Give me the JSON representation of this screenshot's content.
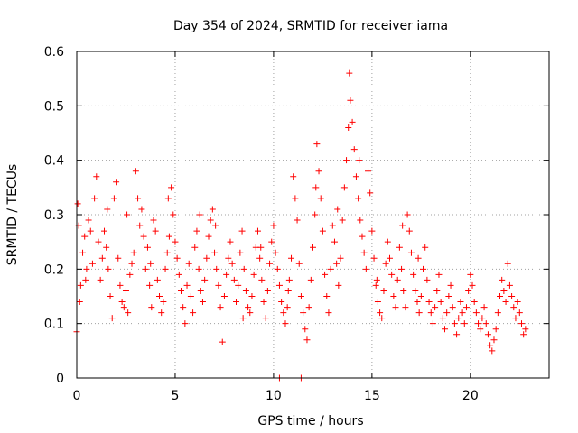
{
  "chart_data": {
    "type": "scatter",
    "title": "Day 354 of 2024, SRMTID for receiver iama",
    "xlabel": "GPS time / hours",
    "ylabel": "SRMTID / TECUs",
    "xlim": [
      0,
      24
    ],
    "ylim": [
      0,
      0.6
    ],
    "x_ticks": [
      0,
      5,
      10,
      15,
      20
    ],
    "y_ticks": [
      0,
      0.1,
      0.2,
      0.3,
      0.4,
      0.5,
      0.6
    ],
    "x_tick_labels": [
      "0",
      "5",
      "10",
      "15",
      "20"
    ],
    "y_tick_labels": [
      "0",
      "0.1",
      "0.2",
      "0.3",
      "0.4",
      "0.5",
      "0.6"
    ],
    "grid": true,
    "marker": "plus",
    "series": [
      {
        "name": "SRMTID",
        "color": "#ff0000",
        "points": [
          [
            0.0,
            0.085
          ],
          [
            0.05,
            0.32
          ],
          [
            0.1,
            0.28
          ],
          [
            0.2,
            0.17
          ],
          [
            0.3,
            0.23
          ],
          [
            0.4,
            0.26
          ],
          [
            0.5,
            0.2
          ],
          [
            0.6,
            0.29
          ],
          [
            0.7,
            0.27
          ],
          [
            0.8,
            0.21
          ],
          [
            0.9,
            0.33
          ],
          [
            1.0,
            0.37
          ],
          [
            1.1,
            0.25
          ],
          [
            1.2,
            0.18
          ],
          [
            1.3,
            0.22
          ],
          [
            1.4,
            0.27
          ],
          [
            1.5,
            0.24
          ],
          [
            1.6,
            0.2
          ],
          [
            1.7,
            0.15
          ],
          [
            1.8,
            0.11
          ],
          [
            1.9,
            0.33
          ],
          [
            2.0,
            0.36
          ],
          [
            2.1,
            0.22
          ],
          [
            2.2,
            0.17
          ],
          [
            2.3,
            0.14
          ],
          [
            2.4,
            0.13
          ],
          [
            2.5,
            0.16
          ],
          [
            2.6,
            0.12
          ],
          [
            2.7,
            0.19
          ],
          [
            2.8,
            0.21
          ],
          [
            2.9,
            0.23
          ],
          [
            3.0,
            0.38
          ],
          [
            3.1,
            0.33
          ],
          [
            3.2,
            0.28
          ],
          [
            3.3,
            0.31
          ],
          [
            3.4,
            0.26
          ],
          [
            3.5,
            0.2
          ],
          [
            3.6,
            0.24
          ],
          [
            3.7,
            0.17
          ],
          [
            3.8,
            0.13
          ],
          [
            3.9,
            0.29
          ],
          [
            4.0,
            0.27
          ],
          [
            4.1,
            0.18
          ],
          [
            4.2,
            0.15
          ],
          [
            4.3,
            0.12
          ],
          [
            4.4,
            0.14
          ],
          [
            4.5,
            0.2
          ],
          [
            4.6,
            0.23
          ],
          [
            4.7,
            0.26
          ],
          [
            4.8,
            0.35
          ],
          [
            4.9,
            0.3
          ],
          [
            5.0,
            0.25
          ],
          [
            5.1,
            0.22
          ],
          [
            5.2,
            0.19
          ],
          [
            5.3,
            0.16
          ],
          [
            5.4,
            0.13
          ],
          [
            5.5,
            0.1
          ],
          [
            5.6,
            0.17
          ],
          [
            5.7,
            0.21
          ],
          [
            5.8,
            0.15
          ],
          [
            5.9,
            0.12
          ],
          [
            6.0,
            0.24
          ],
          [
            6.1,
            0.27
          ],
          [
            6.2,
            0.2
          ],
          [
            6.3,
            0.16
          ],
          [
            6.4,
            0.14
          ],
          [
            6.5,
            0.18
          ],
          [
            6.6,
            0.22
          ],
          [
            6.7,
            0.26
          ],
          [
            6.8,
            0.29
          ],
          [
            6.9,
            0.31
          ],
          [
            7.0,
            0.23
          ],
          [
            7.1,
            0.2
          ],
          [
            7.2,
            0.17
          ],
          [
            7.3,
            0.13
          ],
          [
            7.4,
            0.066
          ],
          [
            7.5,
            0.15
          ],
          [
            7.6,
            0.19
          ],
          [
            7.7,
            0.22
          ],
          [
            7.8,
            0.25
          ],
          [
            7.9,
            0.21
          ],
          [
            8.0,
            0.18
          ],
          [
            8.1,
            0.14
          ],
          [
            8.2,
            0.17
          ],
          [
            8.3,
            0.23
          ],
          [
            8.4,
            0.27
          ],
          [
            8.5,
            0.2
          ],
          [
            8.6,
            0.16
          ],
          [
            8.7,
            0.13
          ],
          [
            8.8,
            0.12
          ],
          [
            8.9,
            0.15
          ],
          [
            9.0,
            0.19
          ],
          [
            9.1,
            0.24
          ],
          [
            9.2,
            0.27
          ],
          [
            9.3,
            0.22
          ],
          [
            9.4,
            0.18
          ],
          [
            9.5,
            0.14
          ],
          [
            9.6,
            0.11
          ],
          [
            9.7,
            0.16
          ],
          [
            9.8,
            0.21
          ],
          [
            9.9,
            0.25
          ],
          [
            10.0,
            0.28
          ],
          [
            10.1,
            0.23
          ],
          [
            10.2,
            0.2
          ],
          [
            10.3,
            0.17
          ],
          [
            10.4,
            0.14
          ],
          [
            10.5,
            0.12
          ],
          [
            10.6,
            0.1
          ],
          [
            10.7,
            0.13
          ],
          [
            10.8,
            0.18
          ],
          [
            10.9,
            0.22
          ],
          [
            11.0,
            0.37
          ],
          [
            11.1,
            0.33
          ],
          [
            11.2,
            0.29
          ],
          [
            11.3,
            0.21
          ],
          [
            11.4,
            0.15
          ],
          [
            11.5,
            0.12
          ],
          [
            11.6,
            0.09
          ],
          [
            11.7,
            0.07
          ],
          [
            11.8,
            0.13
          ],
          [
            11.9,
            0.18
          ],
          [
            12.0,
            0.24
          ],
          [
            12.1,
            0.3
          ],
          [
            12.2,
            0.43
          ],
          [
            12.3,
            0.38
          ],
          [
            12.4,
            0.33
          ],
          [
            12.5,
            0.27
          ],
          [
            12.6,
            0.19
          ],
          [
            12.7,
            0.15
          ],
          [
            12.8,
            0.12
          ],
          [
            12.9,
            0.2
          ],
          [
            13.0,
            0.28
          ],
          [
            13.1,
            0.25
          ],
          [
            13.2,
            0.21
          ],
          [
            13.3,
            0.17
          ],
          [
            13.4,
            0.22
          ],
          [
            13.5,
            0.29
          ],
          [
            13.6,
            0.35
          ],
          [
            13.7,
            0.4
          ],
          [
            13.8,
            0.46
          ],
          [
            13.85,
            0.56
          ],
          [
            13.9,
            0.51
          ],
          [
            14.0,
            0.47
          ],
          [
            14.1,
            0.42
          ],
          [
            14.2,
            0.37
          ],
          [
            14.3,
            0.33
          ],
          [
            14.4,
            0.29
          ],
          [
            14.5,
            0.26
          ],
          [
            14.6,
            0.23
          ],
          [
            14.7,
            0.2
          ],
          [
            14.8,
            0.38
          ],
          [
            14.9,
            0.34
          ],
          [
            15.0,
            0.27
          ],
          [
            15.1,
            0.22
          ],
          [
            15.2,
            0.17
          ],
          [
            15.3,
            0.14
          ],
          [
            15.4,
            0.12
          ],
          [
            15.5,
            0.11
          ],
          [
            15.6,
            0.16
          ],
          [
            15.7,
            0.21
          ],
          [
            15.8,
            0.25
          ],
          [
            15.9,
            0.22
          ],
          [
            16.0,
            0.19
          ],
          [
            16.1,
            0.15
          ],
          [
            16.2,
            0.13
          ],
          [
            16.3,
            0.18
          ],
          [
            16.4,
            0.24
          ],
          [
            16.5,
            0.2
          ],
          [
            16.6,
            0.16
          ],
          [
            16.7,
            0.13
          ],
          [
            16.8,
            0.3
          ],
          [
            16.9,
            0.27
          ],
          [
            17.0,
            0.23
          ],
          [
            17.1,
            0.19
          ],
          [
            17.2,
            0.16
          ],
          [
            17.3,
            0.14
          ],
          [
            17.4,
            0.12
          ],
          [
            17.5,
            0.15
          ],
          [
            17.6,
            0.2
          ],
          [
            17.7,
            0.24
          ],
          [
            17.8,
            0.18
          ],
          [
            17.9,
            0.14
          ],
          [
            18.0,
            0.12
          ],
          [
            18.1,
            0.1
          ],
          [
            18.2,
            0.13
          ],
          [
            18.3,
            0.16
          ],
          [
            18.4,
            0.19
          ],
          [
            18.5,
            0.14
          ],
          [
            18.6,
            0.11
          ],
          [
            18.7,
            0.09
          ],
          [
            18.8,
            0.12
          ],
          [
            18.9,
            0.15
          ],
          [
            19.0,
            0.17
          ],
          [
            19.1,
            0.13
          ],
          [
            19.2,
            0.1
          ],
          [
            19.3,
            0.08
          ],
          [
            19.4,
            0.11
          ],
          [
            19.5,
            0.14
          ],
          [
            19.6,
            0.12
          ],
          [
            19.7,
            0.1
          ],
          [
            19.8,
            0.13
          ],
          [
            19.9,
            0.16
          ],
          [
            20.0,
            0.19
          ],
          [
            20.1,
            0.17
          ],
          [
            20.2,
            0.14
          ],
          [
            20.3,
            0.12
          ],
          [
            20.4,
            0.1
          ],
          [
            20.5,
            0.09
          ],
          [
            20.6,
            0.11
          ],
          [
            20.7,
            0.13
          ],
          [
            20.8,
            0.1
          ],
          [
            20.9,
            0.08
          ],
          [
            21.0,
            0.06
          ],
          [
            21.1,
            0.05
          ],
          [
            21.2,
            0.07
          ],
          [
            21.3,
            0.09
          ],
          [
            21.4,
            0.12
          ],
          [
            21.5,
            0.15
          ],
          [
            21.6,
            0.18
          ],
          [
            21.7,
            0.16
          ],
          [
            21.8,
            0.14
          ],
          [
            21.9,
            0.21
          ],
          [
            22.0,
            0.17
          ],
          [
            22.1,
            0.15
          ],
          [
            22.2,
            0.13
          ],
          [
            22.3,
            0.11
          ],
          [
            22.4,
            0.14
          ],
          [
            22.5,
            0.12
          ],
          [
            22.6,
            0.1
          ],
          [
            22.7,
            0.08
          ],
          [
            22.8,
            0.09
          ],
          [
            10.3,
            0.0
          ],
          [
            11.4,
            0.0
          ],
          [
            0.15,
            0.14
          ],
          [
            0.45,
            0.18
          ],
          [
            1.55,
            0.31
          ],
          [
            2.55,
            0.3
          ],
          [
            3.75,
            0.21
          ],
          [
            4.65,
            0.33
          ],
          [
            6.25,
            0.3
          ],
          [
            7.05,
            0.28
          ],
          [
            8.45,
            0.11
          ],
          [
            9.35,
            0.24
          ],
          [
            10.75,
            0.16
          ],
          [
            12.15,
            0.35
          ],
          [
            13.25,
            0.31
          ],
          [
            14.35,
            0.4
          ],
          [
            15.25,
            0.18
          ],
          [
            16.55,
            0.28
          ],
          [
            17.35,
            0.22
          ]
        ]
      }
    ]
  }
}
